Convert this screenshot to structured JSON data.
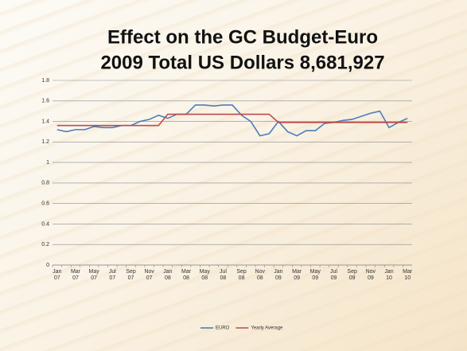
{
  "chart_data": {
    "type": "line",
    "title": "Effect on the GC Budget-Euro",
    "subtitle": "2009 Total US Dollars 8,681,927",
    "categories": [
      "Jan 07",
      null,
      "Mar 07",
      null,
      "May 07",
      null,
      "Jul 07",
      null,
      "Sep 07",
      null,
      "Nov 07",
      null,
      "Jan 08",
      null,
      "Mar 08",
      null,
      "May 08",
      null,
      "Jul 08",
      null,
      "Sep 08",
      null,
      "Nov 08",
      null,
      "Jan 09",
      null,
      "Mar 09",
      null,
      "May 09",
      null,
      "Jul 09",
      null,
      "Sep 09",
      null,
      "Nov 09",
      null,
      "Jan 10",
      null,
      "Mar 10"
    ],
    "series": [
      {
        "name": "EURO",
        "color": "#4a7ebb",
        "values": [
          1.32,
          1.3,
          1.32,
          1.32,
          1.35,
          1.34,
          1.34,
          1.36,
          1.36,
          1.4,
          1.42,
          1.46,
          1.43,
          1.47,
          1.47,
          1.56,
          1.56,
          1.55,
          1.56,
          1.56,
          1.46,
          1.4,
          1.26,
          1.28,
          1.4,
          1.3,
          1.26,
          1.31,
          1.31,
          1.38,
          1.39,
          1.41,
          1.42,
          1.45,
          1.48,
          1.5,
          1.34,
          1.39,
          1.43
        ]
      },
      {
        "name": "Yearly Average",
        "color": "#be4b48",
        "values": [
          1.36,
          1.36,
          1.36,
          1.36,
          1.36,
          1.36,
          1.36,
          1.36,
          1.36,
          1.36,
          1.36,
          1.36,
          1.47,
          1.47,
          1.47,
          1.47,
          1.47,
          1.47,
          1.47,
          1.47,
          1.47,
          1.47,
          1.47,
          1.47,
          1.39,
          1.39,
          1.39,
          1.39,
          1.39,
          1.39,
          1.39,
          1.39,
          1.39,
          1.39,
          1.39,
          1.39,
          1.39,
          1.39,
          1.39
        ]
      }
    ],
    "ylim": [
      0,
      1.8
    ],
    "yticks": [
      0,
      0.2,
      0.4,
      0.6,
      0.8,
      1,
      1.2,
      1.4,
      1.6,
      1.8
    ],
    "grid": true,
    "legend": "bottom"
  }
}
